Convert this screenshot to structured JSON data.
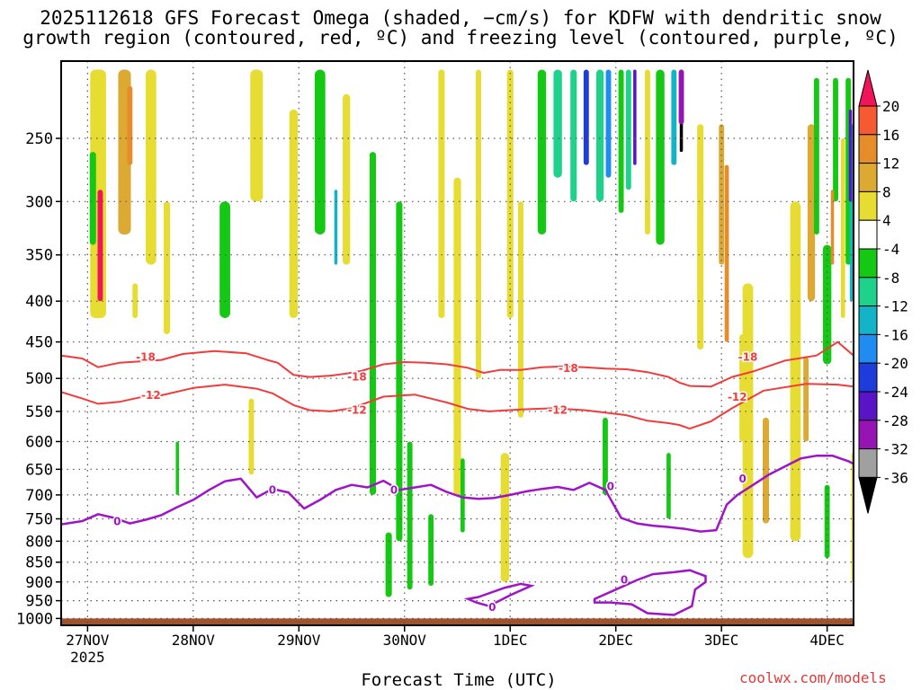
{
  "chart_data": {
    "type": "heatmap",
    "title_line1": "2025112618 GFS Forecast Omega (shaded, −cm/s) for KDFW with dendritic snow",
    "title_line2": "growth region (contoured, red, ºC) and freezing level (contoured, purple, ºC)",
    "xlabel": "Forecast Time (UTC)",
    "credit": "coolwx.com/models",
    "yticks": [
      "250",
      "300",
      "350",
      "400",
      "450",
      "500",
      "550",
      "600",
      "650",
      "700",
      "750",
      "800",
      "850",
      "900",
      "950",
      "1000"
    ],
    "ylim": [
      200,
      1020
    ],
    "xticks": [
      "27NOV",
      "28NOV",
      "29NOV",
      "30NOV",
      "1DEC",
      "2DEC",
      "3DEC",
      "4DEC"
    ],
    "xtick_sub": "2025",
    "xlim": [
      -0.25,
      7.25
    ],
    "colorbar_labels": [
      "20",
      "16",
      "12",
      "8",
      "4",
      "-4",
      "-8",
      "-12",
      "-16",
      "-20",
      "-24",
      "-28",
      "-32",
      "-36"
    ],
    "colorbar_colors": [
      "#f0145a",
      "#f55a32",
      "#e68c28",
      "#dcaa32",
      "#e6dc32",
      "#ffffff",
      "#14c814",
      "#1ed28c",
      "#14b4c8",
      "#1e8cf0",
      "#1e3cdc",
      "#5a14c8",
      "#9614b4",
      "#a0a0a0",
      "#000000"
    ],
    "contour_color_snow": "#f03c3c",
    "contour_color_freezing": "#a014c8",
    "ground_color": "#a0522d",
    "series": [
      {
        "name": "-18",
        "label": "-18",
        "color": "#f03c3c",
        "x": [
          -0.25,
          -0.05,
          0.1,
          0.3,
          0.5,
          0.7,
          0.9,
          1.2,
          1.5,
          1.7,
          1.8,
          1.95,
          2.1,
          2.3,
          2.45,
          2.6,
          2.8,
          3.0,
          3.2,
          3.4,
          3.6,
          3.75,
          3.9,
          4.1,
          4.3,
          4.5,
          4.7,
          4.9,
          5.1,
          5.3,
          5.5,
          5.6,
          5.7,
          5.9,
          6.1,
          6.3,
          6.6,
          6.9,
          7.1,
          7.25
        ],
        "y": [
          468,
          472,
          484,
          478,
          476,
          474,
          466,
          462,
          465,
          474,
          478,
          495,
          498,
          496,
          493,
          489,
          480,
          477,
          478,
          480,
          485,
          492,
          488,
          488,
          484,
          483,
          484,
          486,
          487,
          491,
          498,
          506,
          511,
          512,
          498,
          490,
          475,
          468,
          450,
          468
        ],
        "labels": [
          {
            "x": 0.55,
            "y": 470
          },
          {
            "x": 2.55,
            "y": 498
          },
          {
            "x": 4.55,
            "y": 486
          },
          {
            "x": 6.25,
            "y": 470
          }
        ]
      },
      {
        "name": "-12",
        "label": "-12",
        "color": "#f03c3c",
        "x": [
          -0.25,
          -0.05,
          0.1,
          0.3,
          0.5,
          0.7,
          1.0,
          1.3,
          1.6,
          1.75,
          1.95,
          2.1,
          2.3,
          2.5,
          2.8,
          3.1,
          3.4,
          3.6,
          3.8,
          4.1,
          4.4,
          4.7,
          4.9,
          5.1,
          5.3,
          5.5,
          5.6,
          5.7,
          5.9,
          6.1,
          6.4,
          6.8,
          7.1,
          7.25
        ],
        "y": [
          520,
          530,
          538,
          535,
          528,
          525,
          514,
          509,
          515,
          522,
          540,
          548,
          550,
          545,
          527,
          524,
          536,
          546,
          550,
          547,
          545,
          548,
          552,
          556,
          565,
          569,
          572,
          578,
          566,
          545,
          518,
          508,
          509,
          512
        ],
        "labels": [
          {
            "x": 0.6,
            "y": 525
          },
          {
            "x": 2.55,
            "y": 548
          },
          {
            "x": 4.45,
            "y": 548
          },
          {
            "x": 6.15,
            "y": 528
          }
        ]
      },
      {
        "name": "0",
        "label": "0",
        "color": "#a014c8",
        "x": [
          -0.25,
          -0.05,
          0.1,
          0.25,
          0.4,
          0.55,
          0.7,
          0.85,
          1.0,
          1.15,
          1.3,
          1.45,
          1.6,
          1.75,
          1.9,
          2.05,
          2.2,
          2.35,
          2.5,
          2.65,
          2.8,
          2.95,
          3.1,
          3.25,
          3.4,
          3.55,
          3.7,
          3.85,
          4.0,
          4.15,
          4.3,
          4.45,
          4.6,
          4.75,
          4.9,
          5.05,
          5.1,
          5.2,
          5.35,
          5.5,
          5.65,
          5.8,
          5.95,
          6.05,
          6.15,
          6.3,
          6.45,
          6.6,
          6.75,
          6.9,
          7.05,
          7.2,
          7.25
        ],
        "y": [
          762,
          755,
          740,
          748,
          760,
          752,
          742,
          725,
          710,
          690,
          673,
          668,
          705,
          688,
          695,
          728,
          710,
          690,
          680,
          685,
          672,
          690,
          685,
          680,
          694,
          705,
          708,
          706,
          700,
          693,
          688,
          684,
          690,
          676,
          690,
          748,
          752,
          760,
          765,
          768,
          772,
          778,
          775,
          720,
          700,
          680,
          660,
          645,
          630,
          625,
          625,
          635,
          640
        ],
        "labels": [
          {
            "x": 0.28,
            "y": 756
          },
          {
            "x": 1.75,
            "y": 690
          },
          {
            "x": 2.9,
            "y": 690
          },
          {
            "x": 4.95,
            "y": 683
          },
          {
            "x": 6.2,
            "y": 668
          }
        ]
      }
    ]
  }
}
